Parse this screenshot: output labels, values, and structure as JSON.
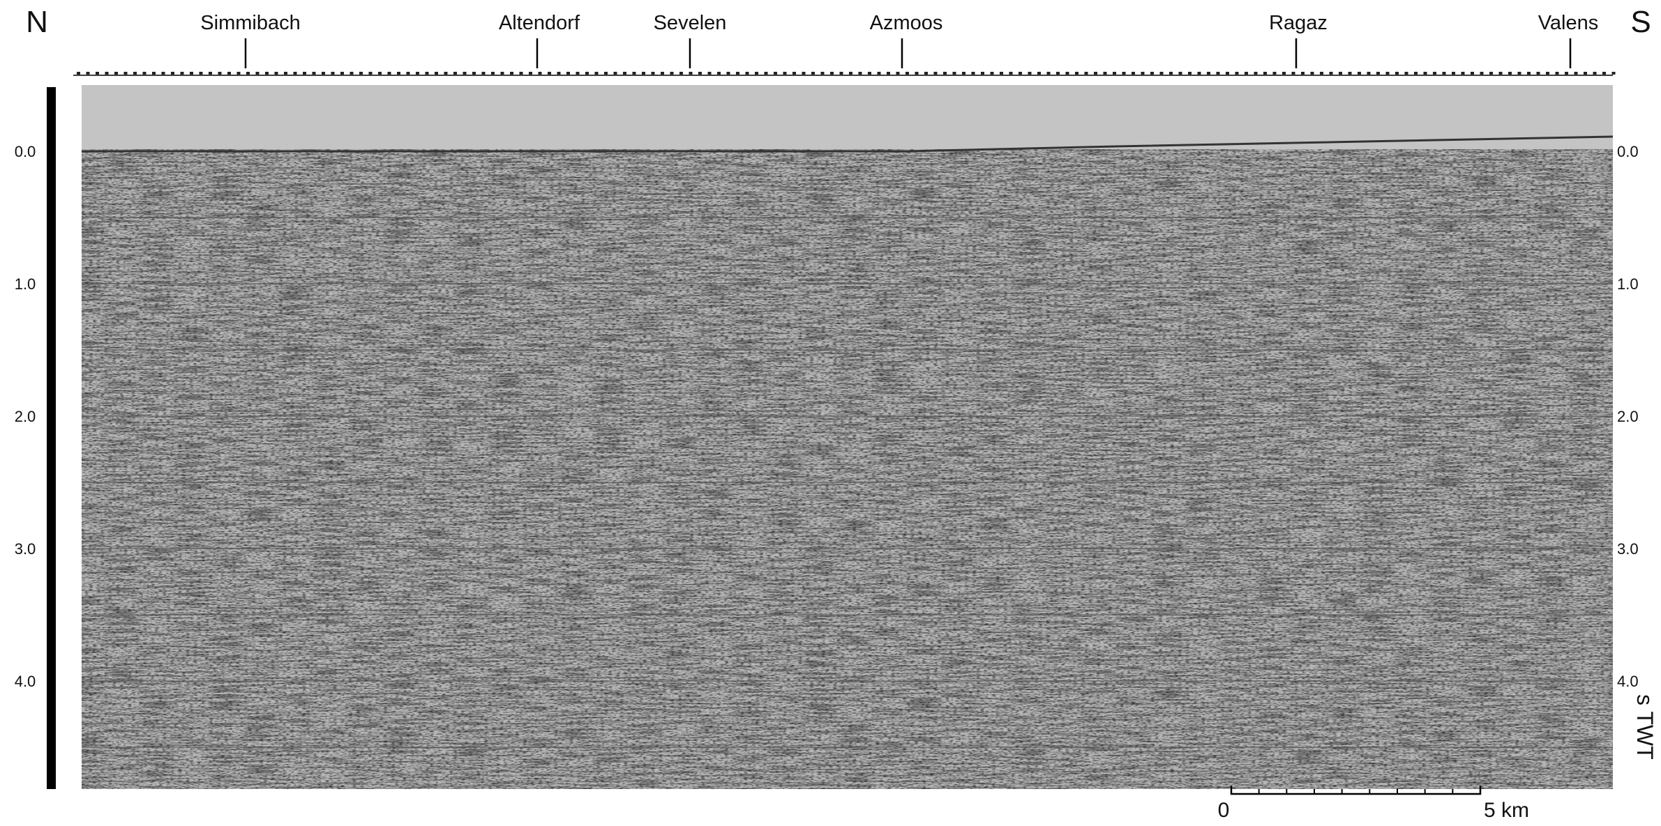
{
  "orientation": {
    "north": "N",
    "south": "S"
  },
  "locations": [
    "Simmibach",
    "Altendorf",
    "Sevelen",
    "Azmoos",
    "Ragaz",
    "Valens"
  ],
  "time_axis": {
    "ticks": [
      "0.0",
      "1.0",
      "2.0",
      "3.0",
      "4.0"
    ],
    "unit": "s TWT"
  },
  "scale_bar": {
    "start": "0",
    "end": "5 km"
  }
}
